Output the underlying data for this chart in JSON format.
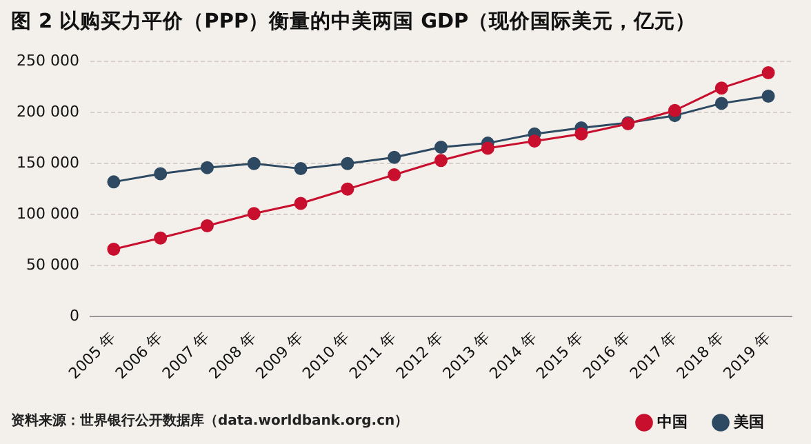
{
  "chart_data": {
    "type": "line",
    "title": "图 2  以购买力平价（PPP）衡量的中美两国 GDP（现价国际美元，亿元）",
    "categories": [
      "2005 年",
      "2006 年",
      "2007 年",
      "2008 年",
      "2009 年",
      "2010 年",
      "2011 年",
      "2012 年",
      "2013 年",
      "2014 年",
      "2015 年",
      "2016 年",
      "2017 年",
      "2018 年",
      "2019 年"
    ],
    "series": [
      {
        "name": "中国",
        "color": "#c8102e",
        "values": [
          66000,
          77000,
          89000,
          101000,
          111000,
          125000,
          139000,
          153000,
          165000,
          172000,
          179000,
          189000,
          202000,
          224000,
          239000
        ]
      },
      {
        "name": "美国",
        "color": "#2e4a62",
        "values": [
          132000,
          140000,
          146000,
          150000,
          145000,
          150000,
          156000,
          166000,
          170000,
          179000,
          185000,
          190000,
          197000,
          209000,
          216000
        ]
      }
    ],
    "ylim": [
      0,
      250000
    ],
    "yticks": [
      0,
      {
        "value": 50000,
        "label": "50 000"
      },
      {
        "value": 100000,
        "label": "100 000"
      },
      {
        "value": 150000,
        "label": "150 000"
      },
      {
        "value": 200000,
        "label": "200 000"
      },
      {
        "value": 250000,
        "label": "250 000"
      }
    ],
    "grid": "y",
    "legend": "bottom right",
    "marker": "circle",
    "line_style": "solid",
    "annotations": [
      "资料来源：世界银行公开数据库（data.worldbank.org.cn）"
    ]
  }
}
